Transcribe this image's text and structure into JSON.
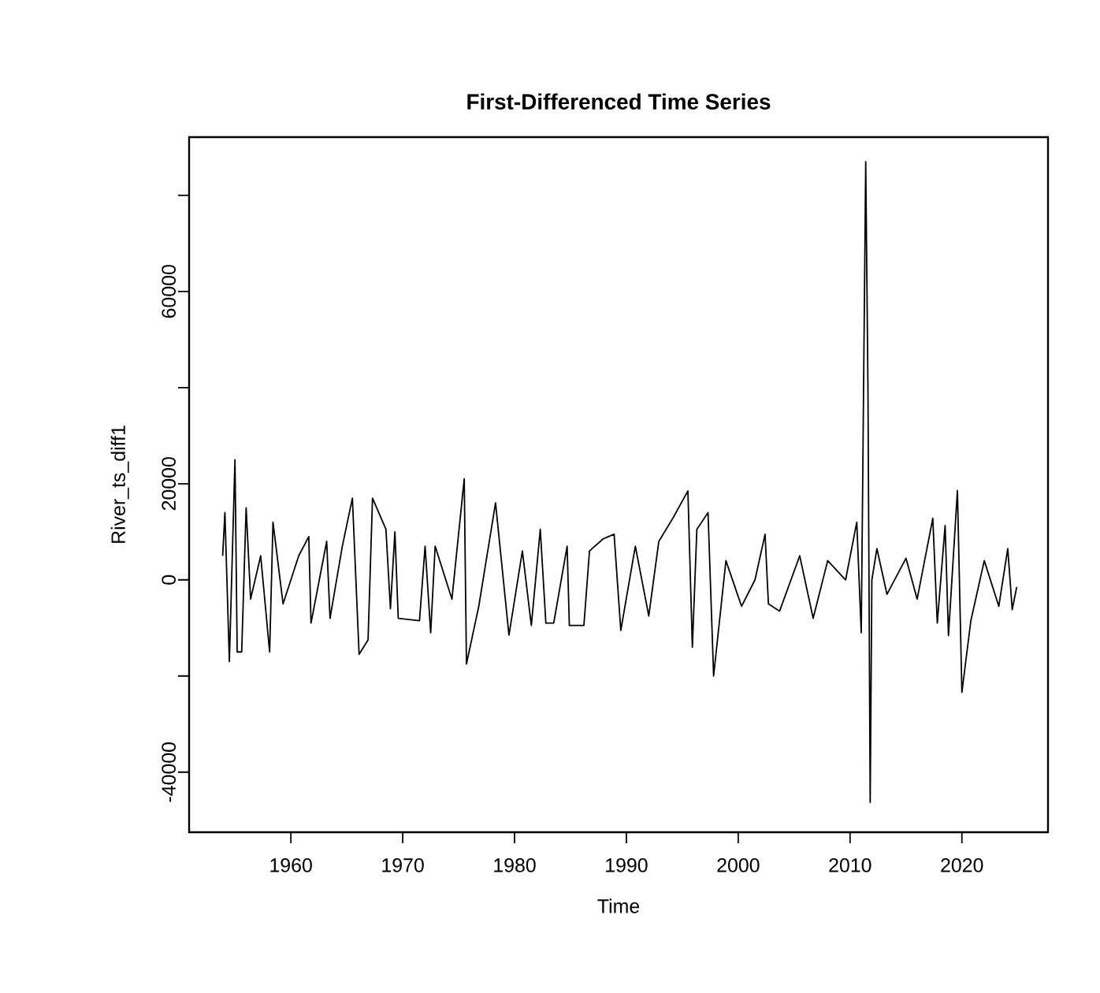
{
  "chart_data": {
    "type": "line",
    "title": "First-Differenced Time Series",
    "xlabel": "Time",
    "ylabel": "River_ts_diff1",
    "xlim": [
      1950.9,
      2027.7
    ],
    "ylim": [
      -52500,
      92100
    ],
    "xticks": [
      1960,
      1970,
      1980,
      1990,
      2000,
      2010,
      2020
    ],
    "yticks": [
      -40000,
      {
        "value": -20000,
        "label": null
      },
      0,
      20000,
      {
        "value": 40000,
        "label": null
      },
      60000,
      {
        "value": 80000,
        "label": null
      }
    ],
    "series": [
      {
        "color": "#000000",
        "x": [
          1953.9,
          1954.1,
          1954.5,
          1955.0,
          1955.2,
          1955.6,
          1956.0,
          1956.4,
          1957.3,
          1958.1,
          1958.4,
          1959.3,
          1960.7,
          1961.6,
          1961.8,
          1963.2,
          1963.5,
          1964.6,
          1965.5,
          1966.1,
          1966.9,
          1967.3,
          1968.5,
          1968.9,
          1969.3,
          1969.6,
          1971.5,
          1972.0,
          1972.5,
          1972.9,
          1974.4,
          1975.5,
          1975.7,
          1976.8,
          1978.3,
          1979.5,
          1980.7,
          1981.5,
          1982.3,
          1982.8,
          1983.5,
          1984.7,
          1984.9,
          1986.2,
          1986.7,
          1987.9,
          1988.9,
          1989.5,
          1990.8,
          1992.0,
          1992.9,
          1994.2,
          1995.5,
          1995.9,
          1996.3,
          1997.3,
          1997.8,
          1998.9,
          2000.3,
          2001.5,
          2002.4,
          2002.7,
          2003.7,
          2005.5,
          2006.7,
          2008.0,
          2009.6,
          2010.6,
          2011.0,
          2011.1,
          2011.4,
          2011.6,
          2011.8,
          2011.95,
          2012.4,
          2013.3,
          2015.0,
          2016.0,
          2017.4,
          2017.8,
          2018.5,
          2018.8,
          2019.6,
          2020.0,
          2020.8,
          2022.0,
          2023.3,
          2024.1,
          2024.5,
          2024.9
        ],
        "values": [
          5000,
          14000,
          -17000,
          25000,
          -15000,
          -15000,
          15000,
          -4000,
          5000,
          -15000,
          12000,
          -5000,
          5000,
          9000,
          -9000,
          8000,
          -8000,
          7000,
          17000,
          -15500,
          -12500,
          17000,
          10500,
          -6000,
          10000,
          -8000,
          -8500,
          7000,
          -11000,
          7000,
          -4000,
          21000,
          -17500,
          -5500,
          16000,
          -11500,
          6000,
          -9500,
          10500,
          -9000,
          -9000,
          7000,
          -9500,
          -9500,
          6000,
          8500,
          9500,
          -10500,
          7000,
          -7500,
          8000,
          13000,
          18500,
          -14000,
          10500,
          14000,
          -20000,
          4000,
          -5500,
          0,
          9500,
          -5000,
          -6500,
          5000,
          -8000,
          4000,
          0,
          12000,
          -11000,
          13000,
          87000,
          40000,
          -46300,
          0,
          6500,
          -3000,
          4500,
          -4000,
          12800,
          -9000,
          11300,
          -11600,
          18600,
          -23400,
          -8500,
          4000,
          -5500,
          6500,
          -6200,
          -1500
        ]
      }
    ]
  }
}
